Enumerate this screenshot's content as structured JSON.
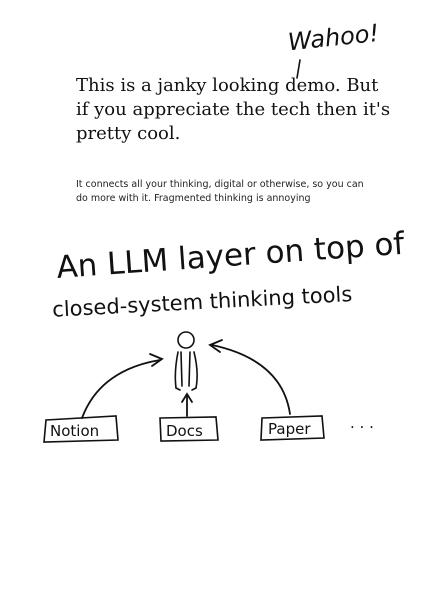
{
  "headline": "This is a janky looking demo. But if you appreciate the tech then it's pretty cool.",
  "subtext": "It connects all your thinking, digital or otherwise, so you can do more with it. Fragmented thinking is annoying",
  "annotation": "Wahoo!",
  "sketch": {
    "line1": "An LLM layer on top of",
    "line2": "closed-system thinking tools",
    "boxes": {
      "notion": "Notion",
      "docs": "Docs",
      "paper": "Paper"
    },
    "ellipsis": ". . ."
  }
}
